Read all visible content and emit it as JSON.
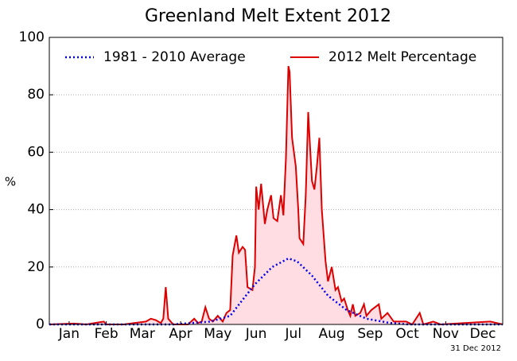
{
  "chart_data": {
    "type": "line",
    "title": "Greenland Melt Extent 2012",
    "y_label": "%",
    "note": "31 Dec 2012",
    "xlim": [
      0,
      366
    ],
    "ylim": [
      0,
      100
    ],
    "yticks": [
      0,
      20,
      40,
      60,
      80,
      100
    ],
    "grid": true,
    "legend": "top",
    "xticks": [
      {
        "value": 16,
        "label": "Jan"
      },
      {
        "value": 46,
        "label": "Feb"
      },
      {
        "value": 75,
        "label": "Mar"
      },
      {
        "value": 106,
        "label": "Apr"
      },
      {
        "value": 136,
        "label": "May"
      },
      {
        "value": 167,
        "label": "Jun"
      },
      {
        "value": 197,
        "label": "Jul"
      },
      {
        "value": 228,
        "label": "Aug"
      },
      {
        "value": 259,
        "label": "Sep"
      },
      {
        "value": 289,
        "label": "Oct"
      },
      {
        "value": 320,
        "label": "Nov"
      },
      {
        "value": 350,
        "label": "Dec"
      }
    ],
    "series": [
      {
        "name": "1981 - 2010 Average",
        "color": "#0000ee",
        "style": "dotted",
        "x": [
          0,
          100,
          130,
          146,
          155,
          166,
          180,
          193,
          200,
          212,
          225,
          240,
          256,
          275,
          290,
          366
        ],
        "values": [
          0,
          0,
          1,
          3,
          8,
          14,
          20,
          23,
          22,
          17,
          10,
          5,
          2,
          0.5,
          0,
          0
        ]
      },
      {
        "name": "2012 Melt Percentage",
        "color": "#dd0000",
        "style": "solid",
        "fill": "#ffdde3",
        "x": [
          0,
          20,
          30,
          44,
          46,
          60,
          78,
          82,
          86,
          90,
          92,
          94,
          96,
          100,
          112,
          117,
          120,
          123,
          126,
          129,
          132,
          136,
          140,
          143,
          146,
          148,
          151,
          153,
          156,
          158,
          160,
          164,
          166,
          167,
          169,
          171,
          174,
          176,
          179,
          181,
          184,
          187,
          189,
          191,
          193,
          194,
          196,
          199,
          201,
          202,
          205,
          207,
          209,
          210,
          212,
          214,
          216,
          218,
          220,
          223,
          225,
          228,
          231,
          233,
          236,
          238,
          241,
          243,
          245,
          247,
          251,
          254,
          256,
          260,
          266,
          268,
          273,
          278,
          288,
          293,
          299,
          302,
          310,
          316,
          356,
          366
        ],
        "values": [
          0,
          0.3,
          0,
          1,
          0,
          0,
          1,
          2,
          1.5,
          0.5,
          2,
          13,
          2,
          0,
          0,
          2,
          0.5,
          1,
          6,
          2,
          1,
          3,
          1,
          4,
          5,
          24,
          31,
          25,
          27,
          26,
          13,
          12,
          20,
          48,
          40,
          49,
          35,
          40,
          45,
          37,
          36,
          45,
          38,
          58,
          90,
          88,
          65,
          55,
          40,
          30,
          28,
          45,
          74,
          66,
          50,
          47,
          55,
          65,
          40,
          22,
          15,
          20,
          12,
          13,
          8,
          9,
          5,
          3,
          7,
          3,
          4,
          7,
          3,
          5,
          7,
          2,
          4,
          1,
          1,
          0,
          4,
          0,
          1,
          0,
          1,
          0
        ]
      }
    ]
  }
}
